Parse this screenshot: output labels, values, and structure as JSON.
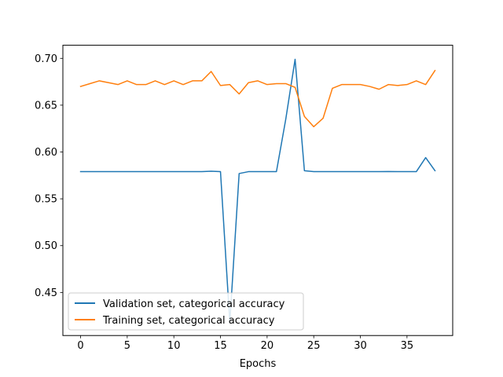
{
  "chart_data": {
    "type": "line",
    "title": "",
    "xlabel": "Epochs",
    "ylabel": "",
    "xlim": [
      -1.9,
      39.9
    ],
    "ylim": [
      0.404,
      0.714
    ],
    "xticks": [
      0,
      5,
      10,
      15,
      20,
      25,
      30,
      35
    ],
    "yticks": [
      0.45,
      0.5,
      0.55,
      0.6,
      0.65,
      0.7
    ],
    "ytick_labels": [
      "0.45",
      "0.50",
      "0.55",
      "0.60",
      "0.65",
      "0.70"
    ],
    "legend": "lower-left",
    "grid": false,
    "x": [
      0,
      1,
      2,
      3,
      4,
      5,
      6,
      7,
      8,
      9,
      10,
      11,
      12,
      13,
      14,
      15,
      16,
      17,
      18,
      19,
      20,
      21,
      22,
      23,
      24,
      25,
      26,
      27,
      28,
      29,
      30,
      31,
      32,
      33,
      34,
      35,
      36,
      37,
      38
    ],
    "series": [
      {
        "name": "Validation set, categorical accuracy",
        "color": "#1f77b4",
        "values": [
          0.579,
          0.579,
          0.579,
          0.579,
          0.579,
          0.579,
          0.579,
          0.579,
          0.579,
          0.579,
          0.579,
          0.579,
          0.579,
          0.579,
          0.5795,
          0.579,
          0.418,
          0.577,
          0.579,
          0.579,
          0.579,
          0.579,
          0.635,
          0.699,
          0.58,
          0.579,
          0.579,
          0.579,
          0.579,
          0.579,
          0.579,
          0.579,
          0.579,
          0.5792,
          0.579,
          0.579,
          0.579,
          0.594,
          0.58
        ]
      },
      {
        "name": "Training set, categorical accuracy",
        "color": "#ff7f0e",
        "values": [
          0.67,
          0.673,
          0.676,
          0.674,
          0.672,
          0.676,
          0.672,
          0.672,
          0.676,
          0.672,
          0.676,
          0.672,
          0.676,
          0.676,
          0.686,
          0.671,
          0.672,
          0.662,
          0.674,
          0.676,
          0.672,
          0.673,
          0.673,
          0.669,
          0.638,
          0.627,
          0.636,
          0.668,
          0.672,
          0.672,
          0.672,
          0.67,
          0.667,
          0.672,
          0.671,
          0.672,
          0.676,
          0.672,
          0.687
        ]
      }
    ]
  }
}
